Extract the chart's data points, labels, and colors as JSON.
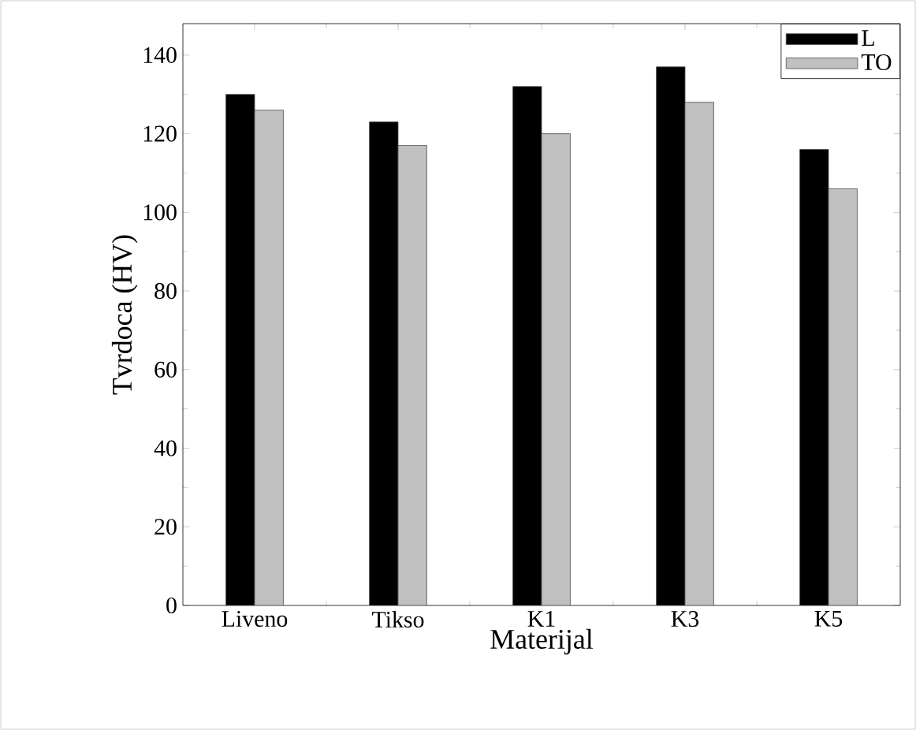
{
  "chart_data": {
    "type": "bar",
    "xlabel": "Materijal",
    "ylabel": "Tvrdoca (HV)",
    "categories": [
      "Liveno",
      "Tikso",
      "K1",
      "K3",
      "K5"
    ],
    "series": [
      {
        "name": "L",
        "color": "#000000",
        "values": [
          130,
          123,
          132,
          137,
          116
        ]
      },
      {
        "name": "TO",
        "color": "#c0c0c0",
        "values": [
          126,
          117,
          120,
          128,
          106
        ]
      }
    ],
    "ylim": [
      0,
      148
    ],
    "yticks": [
      0,
      20,
      40,
      60,
      80,
      100,
      120,
      140
    ],
    "grid": false,
    "legend": "top right"
  }
}
